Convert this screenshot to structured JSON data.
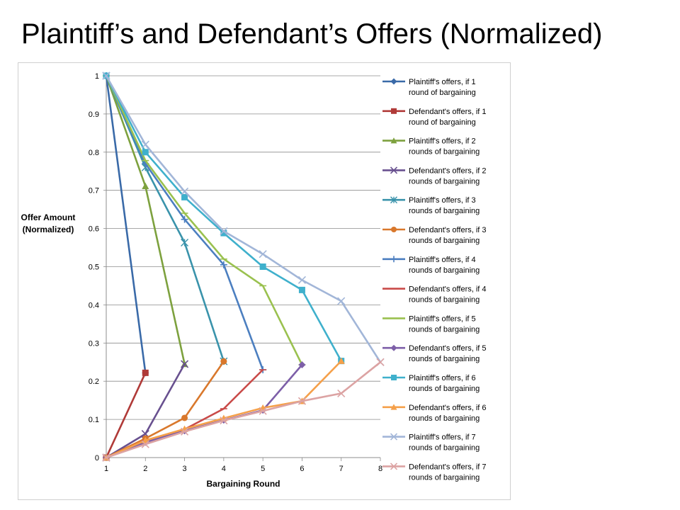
{
  "slide": {
    "title": "Plaintiff’s and Defendant’s Offers (Normalized)"
  },
  "chart_data": {
    "type": "line",
    "title": "",
    "xlabel": "Bargaining Round",
    "ylabel_lines": [
      "Offer Amount",
      "(Normalized)"
    ],
    "x_ticks": [
      1,
      2,
      3,
      4,
      5,
      6,
      7,
      8
    ],
    "y_ticks": [
      "0",
      "0.1",
      "0.2",
      "0.3",
      "0.4",
      "0.5",
      "0.6",
      "0.7",
      "0.8",
      "0.9",
      "1"
    ],
    "xlim": [
      1,
      8
    ],
    "ylim": [
      0,
      1
    ],
    "grid": "horizontal",
    "legend": "right",
    "series": [
      {
        "name_lines": [
          "Plaintiff's offers, if  1",
          "round of bargaining"
        ],
        "color": "#3a6aa8",
        "marker": "diamond",
        "x": [
          1,
          2
        ],
        "y": [
          1,
          0.222
        ]
      },
      {
        "name_lines": [
          "Defendant's offers, if  1",
          "round of bargaining"
        ],
        "color": "#b03a38",
        "marker": "square",
        "x": [
          1,
          2
        ],
        "y": [
          0,
          0.222
        ]
      },
      {
        "name_lines": [
          "Plaintiff's offers, if  2",
          "rounds of bargaining"
        ],
        "color": "#7da13e",
        "marker": "triangle",
        "x": [
          1,
          2,
          3
        ],
        "y": [
          1,
          0.711,
          0.245
        ]
      },
      {
        "name_lines": [
          "Defendant's offers, if  2",
          "rounds of bargaining"
        ],
        "color": "#68508f",
        "marker": "x",
        "x": [
          1,
          2,
          3
        ],
        "y": [
          0,
          0.062,
          0.245
        ]
      },
      {
        "name_lines": [
          "Plaintiff's offers, if  3",
          "rounds of bargaining"
        ],
        "color": "#3a93ab",
        "marker": "star",
        "x": [
          1,
          2,
          3,
          4
        ],
        "y": [
          1,
          0.76,
          0.563,
          0.252
        ]
      },
      {
        "name_lines": [
          "Defendant's offers, if  3",
          "rounds of bargaining"
        ],
        "color": "#d9782c",
        "marker": "circle",
        "x": [
          1,
          2,
          3,
          4
        ],
        "y": [
          0,
          0.05,
          0.104,
          0.252
        ]
      },
      {
        "name_lines": [
          "Plaintiff's offers, if  4",
          "rounds of bargaining"
        ],
        "color": "#4c7fc0",
        "marker": "plus",
        "x": [
          1,
          2,
          3,
          4,
          5
        ],
        "y": [
          1,
          0.77,
          0.624,
          0.505,
          0.23
        ]
      },
      {
        "name_lines": [
          "Defendant's offers, if  4",
          "rounds of bargaining"
        ],
        "color": "#c94a48",
        "marker": "dash",
        "x": [
          1,
          2,
          3,
          4,
          5
        ],
        "y": [
          0,
          0.045,
          0.074,
          0.128,
          0.23
        ]
      },
      {
        "name_lines": [
          "Plaintiff's offers, if  5",
          "rounds of bargaining"
        ],
        "color": "#9ac14f",
        "marker": "dash",
        "x": [
          1,
          2,
          3,
          4,
          5,
          6
        ],
        "y": [
          1,
          0.778,
          0.64,
          0.52,
          0.45,
          0.243
        ]
      },
      {
        "name_lines": [
          "Defendant's offers, if  5",
          "rounds of bargaining"
        ],
        "color": "#7d5fa8",
        "marker": "diamond",
        "x": [
          1,
          2,
          3,
          4,
          5,
          6
        ],
        "y": [
          0,
          0.04,
          0.07,
          0.098,
          0.124,
          0.243
        ]
      },
      {
        "name_lines": [
          "Plaintiff's offers, if  6",
          "rounds of bargaining"
        ],
        "color": "#3fb0cc",
        "marker": "square",
        "x": [
          1,
          2,
          3,
          4,
          5,
          6,
          7
        ],
        "y": [
          1,
          0.8,
          0.682,
          0.588,
          0.5,
          0.439,
          0.253
        ]
      },
      {
        "name_lines": [
          "Defendant's offers, if 6",
          "rounds of bargaining"
        ],
        "color": "#f5a04a",
        "marker": "triangle",
        "x": [
          1,
          2,
          3,
          4,
          5,
          6,
          7
        ],
        "y": [
          0,
          0.045,
          0.075,
          0.103,
          0.13,
          0.148,
          0.253
        ]
      },
      {
        "name_lines": [
          "Plaintiff's offers, if  7",
          "rounds of bargaining"
        ],
        "color": "#a2b6d8",
        "marker": "x",
        "x": [
          1,
          2,
          3,
          4,
          5,
          6,
          7,
          8
        ],
        "y": [
          1,
          0.82,
          0.697,
          0.593,
          0.533,
          0.465,
          0.41,
          0.25
        ]
      },
      {
        "name_lines": [
          "Defendant's offers, if 7",
          "rounds of bargaining"
        ],
        "color": "#dca3a3",
        "marker": "x",
        "x": [
          1,
          2,
          3,
          4,
          5,
          6,
          7,
          8
        ],
        "y": [
          0,
          0.035,
          0.068,
          0.097,
          0.122,
          0.148,
          0.168,
          0.25
        ]
      }
    ]
  }
}
